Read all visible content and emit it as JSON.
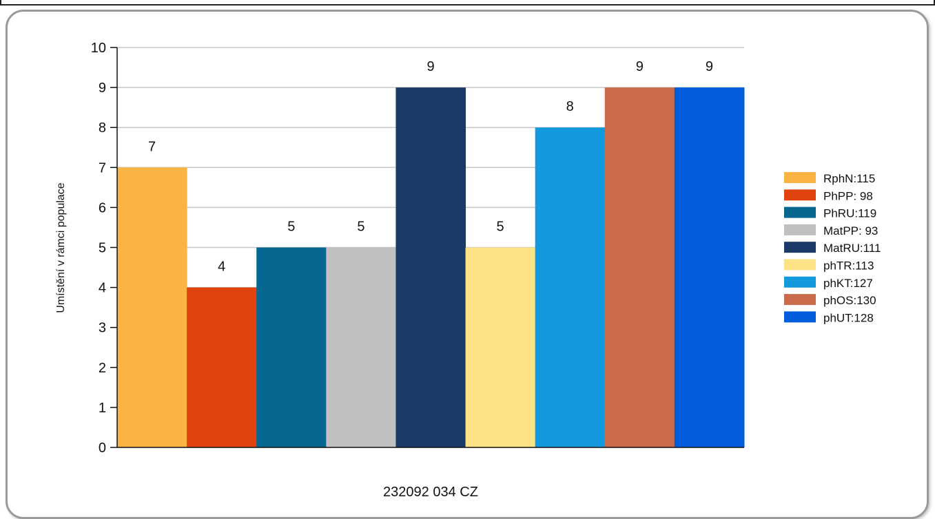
{
  "chart_data": {
    "type": "bar",
    "categories": [
      "RphN:115",
      "PhPP: 98",
      "PhRU:119",
      "MatPP: 93",
      "MatRU:111",
      "phTR:113",
      "phKT:127",
      "phOS:130",
      "phUT:128"
    ],
    "values": [
      7,
      4,
      5,
      5,
      9,
      5,
      8,
      9,
      9
    ],
    "colors": [
      "#f9b443",
      "#e0440c",
      "#066791",
      "#c0c0c0",
      "#1b3a67",
      "#fde185",
      "#139ade",
      "#c96b4b",
      "#025ddc"
    ],
    "data_labels": [
      "7",
      "4",
      "5",
      "5",
      "9",
      "5",
      "8",
      "9",
      "9"
    ],
    "ylabel": "Umístění v rámci populace",
    "xlabel": "232092 034 CZ",
    "ylim": [
      0,
      10
    ],
    "yticks": [
      0,
      1,
      2,
      3,
      4,
      5,
      6,
      7,
      8,
      9,
      10
    ],
    "grid": true,
    "legend_position": "right"
  }
}
